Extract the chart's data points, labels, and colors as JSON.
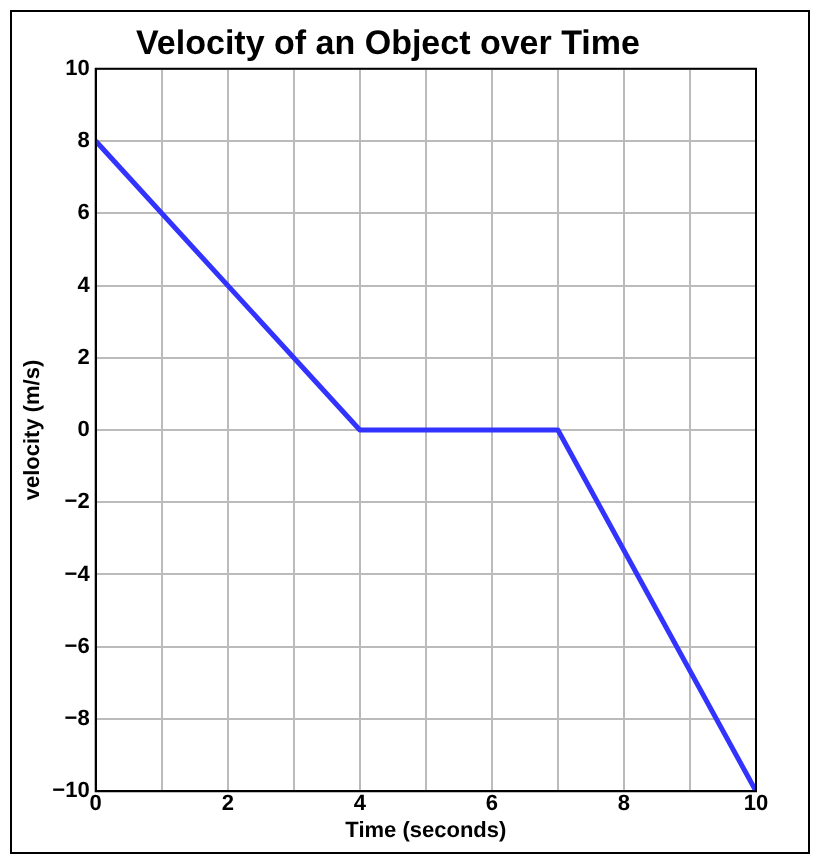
{
  "chart_data": {
    "type": "line",
    "title": "Velocity of an Object over Time",
    "xlabel": "Time (seconds)",
    "ylabel": "velocity (m/s)",
    "x": [
      0,
      4,
      7,
      10
    ],
    "series": [
      {
        "color": "#3333ff",
        "values": [
          8,
          0,
          0,
          -10
        ]
      }
    ],
    "xlim": [
      0,
      10
    ],
    "xticks": [
      0,
      {
        "value": 1,
        "label": null
      },
      2,
      {
        "value": 3,
        "label": null
      },
      4,
      {
        "value": 5,
        "label": null
      },
      6,
      {
        "value": 7,
        "label": null
      },
      8,
      {
        "value": 9,
        "label": null
      },
      10
    ],
    "ylim": [
      -10,
      10
    ],
    "yticks": [
      -10,
      -8,
      -6,
      -4,
      -2,
      0,
      2,
      4,
      6,
      8,
      10
    ],
    "grid": true,
    "marker": "none",
    "line_style": "solid"
  }
}
